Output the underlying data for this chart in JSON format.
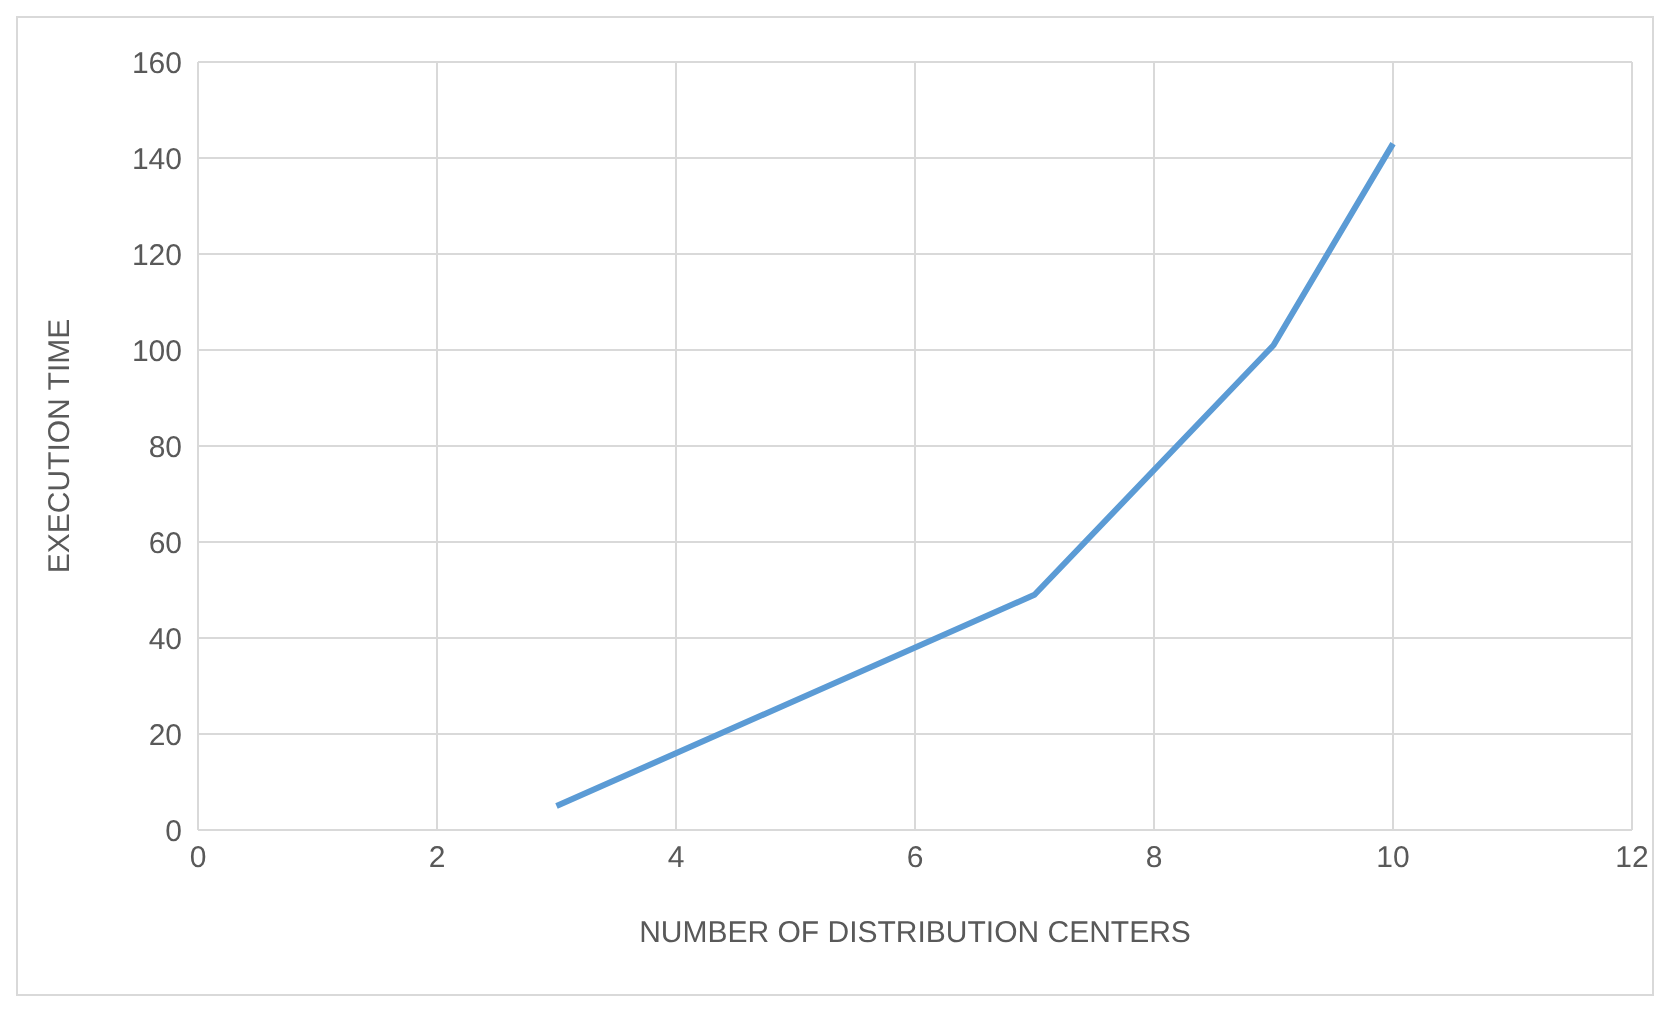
{
  "chart_data": {
    "type": "line",
    "xlabel": "NUMBER OF DISTRIBUTION CENTERS",
    "ylabel": "EXECUTION TIME",
    "x": [
      3,
      7,
      9,
      10
    ],
    "series": [
      {
        "color": "#5b9bd5",
        "values": [
          5,
          49,
          101,
          143
        ]
      }
    ],
    "xlim": [
      0,
      12
    ],
    "xticks": [
      0,
      2,
      4,
      6,
      8,
      10,
      12
    ],
    "ylim": [
      0,
      160
    ],
    "yticks": [
      0,
      20,
      40,
      60,
      80,
      100,
      120,
      140,
      160
    ],
    "grid": true,
    "marker": "none",
    "line_style": "solid"
  }
}
